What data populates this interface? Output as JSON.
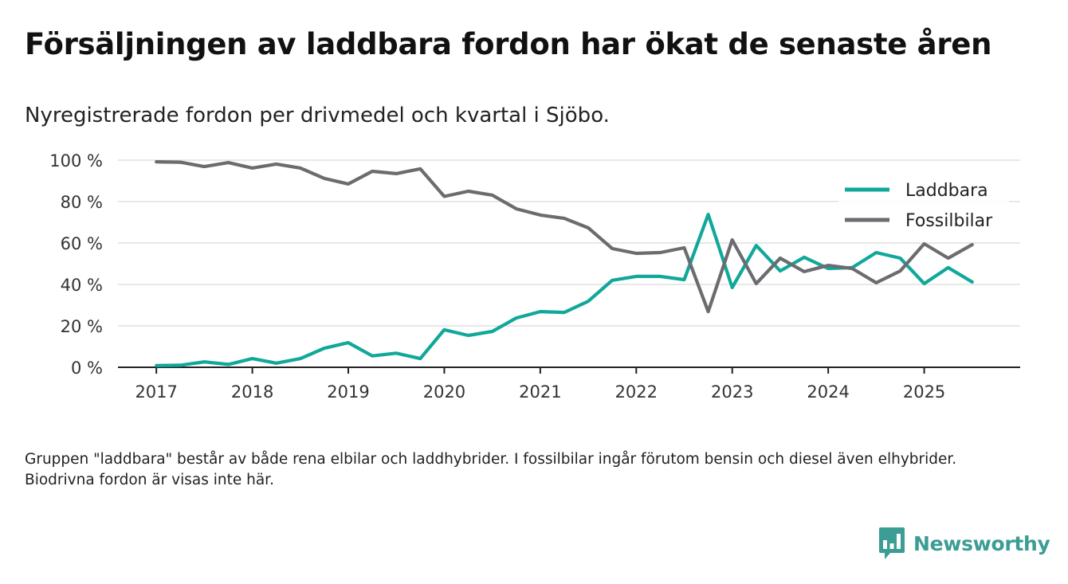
{
  "header": {
    "title": "Försäljningen av laddbara fordon har ökat de senaste åren",
    "subtitle": "Nyregistrerade fordon per drivmedel och kvartal i Sjöbo."
  },
  "footnote": "Gruppen \"laddbara\" består av både rena elbilar och laddhybrider. I fossilbilar ingår förutom bensin och diesel även elhybrider. Biodrivna fordon är visas inte här.",
  "brand": {
    "name": "Newsworthy",
    "color": "#3b9d93"
  },
  "chart_data": {
    "type": "line",
    "title": "Försäljningen av laddbara fordon har ökat de senaste åren",
    "subtitle": "Nyregistrerade fordon per drivmedel och kvartal i Sjöbo.",
    "xlabel": "",
    "ylabel": "",
    "x": [
      2017.0,
      2017.25,
      2017.5,
      2017.75,
      2018.0,
      2018.25,
      2018.5,
      2018.75,
      2019.0,
      2019.25,
      2019.5,
      2019.75,
      2020.0,
      2020.25,
      2020.5,
      2020.75,
      2021.0,
      2021.25,
      2021.5,
      2021.75,
      2022.0,
      2022.25,
      2022.5,
      2022.75,
      2023.0,
      2023.25,
      2023.5,
      2023.75,
      2024.0,
      2024.25,
      2024.5,
      2024.75,
      2025.0,
      2025.25,
      2025.5
    ],
    "xlim": [
      2016.6,
      2026.0
    ],
    "xticks": [
      2017,
      2018,
      2019,
      2020,
      2021,
      2022,
      2023,
      2024,
      2025
    ],
    "xtick_labels": [
      "2017",
      "2018",
      "2019",
      "2020",
      "2021",
      "2022",
      "2023",
      "2024",
      "2025"
    ],
    "ylim": [
      0,
      100
    ],
    "yticks": [
      0,
      20,
      40,
      60,
      80,
      100
    ],
    "ytick_labels": [
      "0 %",
      "20 %",
      "40 %",
      "60 %",
      "80 %",
      "100 %"
    ],
    "grid": true,
    "legend_position": "top-right",
    "series": [
      {
        "name": "Laddbara",
        "color": "#10a89a",
        "values": [
          0.8,
          1.0,
          2.6,
          1.4,
          4.2,
          2.0,
          4.2,
          9.2,
          11.9,
          5.5,
          6.8,
          4.2,
          18.1,
          15.4,
          17.3,
          23.8,
          26.9,
          26.5,
          31.9,
          42.0,
          43.9,
          43.9,
          42.3,
          73.8,
          38.5,
          58.8,
          46.5,
          53.1,
          47.7,
          48.1,
          55.4,
          52.7,
          40.4,
          48.1,
          41.2
        ]
      },
      {
        "name": "Fossilbilar",
        "color": "#6c6b70",
        "values": [
          99.2,
          99.0,
          96.9,
          98.8,
          96.2,
          98.1,
          96.2,
          91.2,
          88.5,
          94.6,
          93.5,
          95.8,
          82.5,
          85.0,
          83.1,
          76.5,
          73.5,
          71.9,
          67.3,
          57.3,
          55.0,
          55.4,
          57.7,
          26.9,
          61.5,
          40.4,
          52.7,
          46.2,
          49.2,
          47.7,
          40.8,
          46.5,
          59.6,
          52.7,
          59.2
        ]
      }
    ]
  }
}
